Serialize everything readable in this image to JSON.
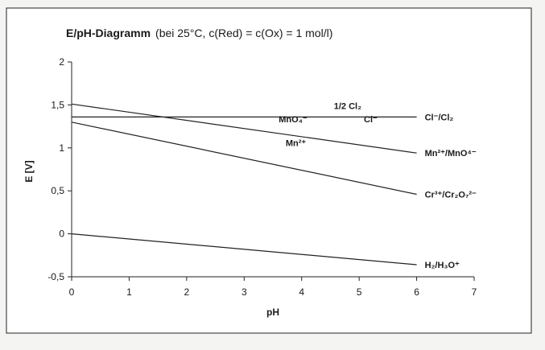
{
  "chart_data": {
    "type": "line",
    "title": "E/pH-Diagramm",
    "subtitle": "(bei 25°C, c(Red) = c(Ox) = 1 mol/l)",
    "xlabel": "pH",
    "ylabel": "E [V]",
    "xlim": [
      0,
      7
    ],
    "ylim": [
      -0.5,
      2
    ],
    "x_ticks": [
      0,
      1,
      2,
      3,
      4,
      5,
      6,
      7
    ],
    "y_ticks": [
      -0.5,
      0,
      0.5,
      1,
      1.5,
      2
    ],
    "x_tick_labels": [
      "0",
      "1",
      "2",
      "3",
      "4",
      "5",
      "6",
      "7"
    ],
    "y_tick_labels": [
      "-0,5",
      "0",
      "0,5",
      "1",
      "1,5",
      "2"
    ],
    "grid": false,
    "line_color": "#222222",
    "series": [
      {
        "name": "Cl⁻/Cl₂",
        "x": [
          0,
          6
        ],
        "y": [
          1.36,
          1.36
        ]
      },
      {
        "name": "Mn²⁺/MnO⁴⁻",
        "x": [
          0,
          6
        ],
        "y": [
          1.51,
          0.94
        ]
      },
      {
        "name": "Cr³⁺/Cr₂O₇²⁻",
        "x": [
          0,
          6
        ],
        "y": [
          1.3,
          0.46
        ]
      },
      {
        "name": "H₂/H₃O⁺",
        "x": [
          0,
          6
        ],
        "y": [
          0.0,
          -0.36
        ]
      }
    ],
    "annotations": [
      {
        "text": "1/2 Cl₂",
        "x": 4.8,
        "y": 1.45
      },
      {
        "text": "MnO₄⁻",
        "x": 3.85,
        "y": 1.3
      },
      {
        "text": "Cl⁻",
        "x": 5.2,
        "y": 1.3
      },
      {
        "text": "Mn²⁺",
        "x": 3.9,
        "y": 1.02
      }
    ]
  }
}
